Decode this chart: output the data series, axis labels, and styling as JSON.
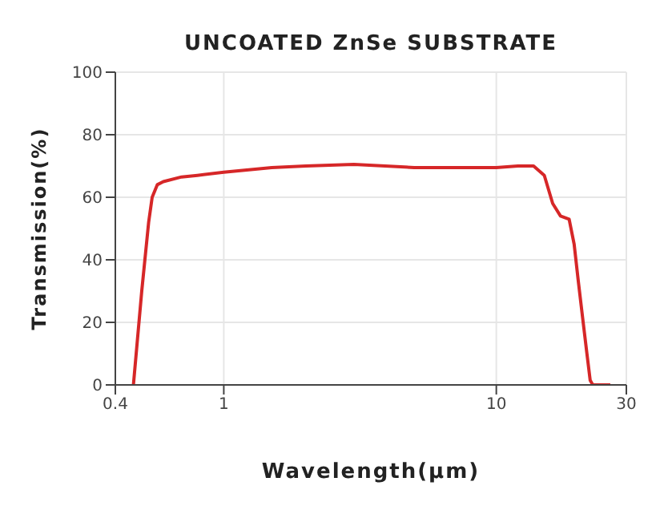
{
  "chart_data": {
    "type": "line",
    "title": "UNCOATED ZnSe SUBSTRATE",
    "xlabel": "Wavelength(μm)",
    "ylabel": "Transmission(%)",
    "series": [
      {
        "color": "#d62728",
        "x": [
          0.466,
          0.5,
          0.53,
          0.546,
          0.57,
          0.6,
          0.7,
          0.8,
          1,
          1.5,
          2,
          3,
          5,
          7,
          10,
          12,
          13.7,
          15,
          16.1,
          17.2,
          18.5,
          19.3,
          20,
          20.7,
          21.5,
          22.1,
          22.6,
          24,
          26.2
        ],
        "values": [
          0,
          30,
          52,
          60,
          64,
          65,
          66.5,
          67,
          68,
          69.5,
          70,
          70.5,
          69.5,
          69.5,
          69.5,
          70,
          70,
          67,
          58,
          54,
          53,
          45,
          33,
          22,
          10,
          1.5,
          0,
          0,
          0
        ]
      }
    ],
    "log": "x",
    "xlim": [
      0.4,
      30
    ],
    "xticks": [
      0.4,
      1,
      10,
      30
    ],
    "ylim": [
      0,
      100
    ],
    "yticks": [
      0,
      20,
      40,
      60,
      80,
      100
    ],
    "grid": true,
    "marker": "none",
    "line_style": "solid"
  }
}
